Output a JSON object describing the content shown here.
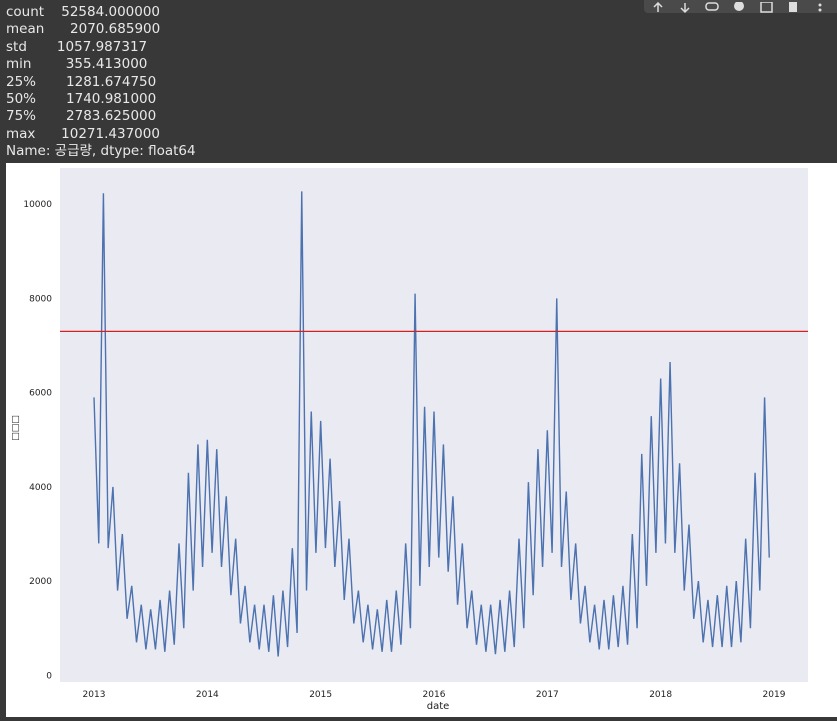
{
  "output_lines": [
    "count    52584.000000",
    "mean      2070.685900",
    "std       1057.987317",
    "min        355.413000",
    "25%       1281.674750",
    "50%       1740.981000",
    "75%       2783.625000",
    "max      10271.437000",
    "Name: 공급량, dtype: float64"
  ],
  "chart_data": {
    "type": "line",
    "xlabel": "date",
    "ylabel": "□□□",
    "color": "#4c72b0",
    "grid": false,
    "xlim": [
      2012.7,
      2019.3
    ],
    "xticks": [
      2013,
      2014,
      2015,
      2016,
      2017,
      2018,
      2019
    ],
    "ylim": [
      -141,
      10767
    ],
    "yticks": [
      0,
      2000,
      4000,
      6000,
      8000,
      10000
    ],
    "hline": {
      "value": 7300,
      "color": "#d62020"
    },
    "x": [
      2013.0,
      2013.042,
      2013.083,
      2013.125,
      2013.167,
      2013.208,
      2013.25,
      2013.292,
      2013.333,
      2013.375,
      2013.417,
      2013.458,
      2013.5,
      2013.542,
      2013.583,
      2013.625,
      2013.667,
      2013.708,
      2013.75,
      2013.792,
      2013.833,
      2013.875,
      2013.917,
      2013.958,
      2014.0,
      2014.042,
      2014.083,
      2014.125,
      2014.167,
      2014.208,
      2014.25,
      2014.292,
      2014.333,
      2014.375,
      2014.417,
      2014.458,
      2014.5,
      2014.542,
      2014.583,
      2014.625,
      2014.667,
      2014.708,
      2014.75,
      2014.792,
      2014.833,
      2014.875,
      2014.917,
      2014.958,
      2015.0,
      2015.042,
      2015.083,
      2015.125,
      2015.167,
      2015.208,
      2015.25,
      2015.292,
      2015.333,
      2015.375,
      2015.417,
      2015.458,
      2015.5,
      2015.542,
      2015.583,
      2015.625,
      2015.667,
      2015.708,
      2015.75,
      2015.792,
      2015.833,
      2015.875,
      2015.917,
      2015.958,
      2016.0,
      2016.042,
      2016.083,
      2016.125,
      2016.167,
      2016.208,
      2016.25,
      2016.292,
      2016.333,
      2016.375,
      2016.417,
      2016.458,
      2016.5,
      2016.542,
      2016.583,
      2016.625,
      2016.667,
      2016.708,
      2016.75,
      2016.792,
      2016.833,
      2016.875,
      2016.917,
      2016.958,
      2017.0,
      2017.042,
      2017.083,
      2017.125,
      2017.167,
      2017.208,
      2017.25,
      2017.292,
      2017.333,
      2017.375,
      2017.417,
      2017.458,
      2017.5,
      2017.542,
      2017.583,
      2017.625,
      2017.667,
      2017.708,
      2017.75,
      2017.792,
      2017.833,
      2017.875,
      2017.917,
      2017.958,
      2018.0,
      2018.042,
      2018.083,
      2018.125,
      2018.167,
      2018.208,
      2018.25,
      2018.292,
      2018.333,
      2018.375,
      2018.417,
      2018.458,
      2018.5,
      2018.542,
      2018.583,
      2018.625,
      2018.667,
      2018.708,
      2018.75,
      2018.792,
      2018.833,
      2018.875,
      2018.917,
      2018.958
    ],
    "values": [
      5900,
      2800,
      10230,
      2700,
      4000,
      1800,
      3000,
      1200,
      1900,
      700,
      1500,
      550,
      1400,
      550,
      1600,
      500,
      1800,
      650,
      2800,
      1000,
      4300,
      1800,
      4900,
      2300,
      5000,
      2600,
      4800,
      2300,
      3800,
      1700,
      2900,
      1100,
      1900,
      700,
      1500,
      550,
      1500,
      500,
      1700,
      400,
      1800,
      600,
      2700,
      900,
      10271,
      1800,
      5600,
      2600,
      5400,
      2700,
      4600,
      2300,
      3700,
      1600,
      2900,
      1100,
      1800,
      700,
      1500,
      550,
      1400,
      500,
      1600,
      500,
      1800,
      650,
      2800,
      1000,
      8100,
      1900,
      5700,
      2300,
      5600,
      2500,
      4900,
      2200,
      3800,
      1500,
      2800,
      1000,
      1800,
      650,
      1500,
      500,
      1500,
      450,
      1600,
      500,
      1800,
      600,
      2900,
      1000,
      4100,
      1700,
      4800,
      2300,
      5200,
      2600,
      8000,
      2300,
      3900,
      1600,
      2800,
      1100,
      1900,
      700,
      1500,
      550,
      1600,
      550,
      1700,
      600,
      1900,
      650,
      3000,
      1000,
      4700,
      1900,
      5500,
      2600,
      6300,
      2800,
      6650,
      2600,
      4500,
      1800,
      3200,
      1200,
      2000,
      700,
      1600,
      600,
      1700,
      600,
      1900,
      600,
      2000,
      700,
      2900,
      1000,
      4300,
      1800,
      5900,
      2500
    ]
  }
}
